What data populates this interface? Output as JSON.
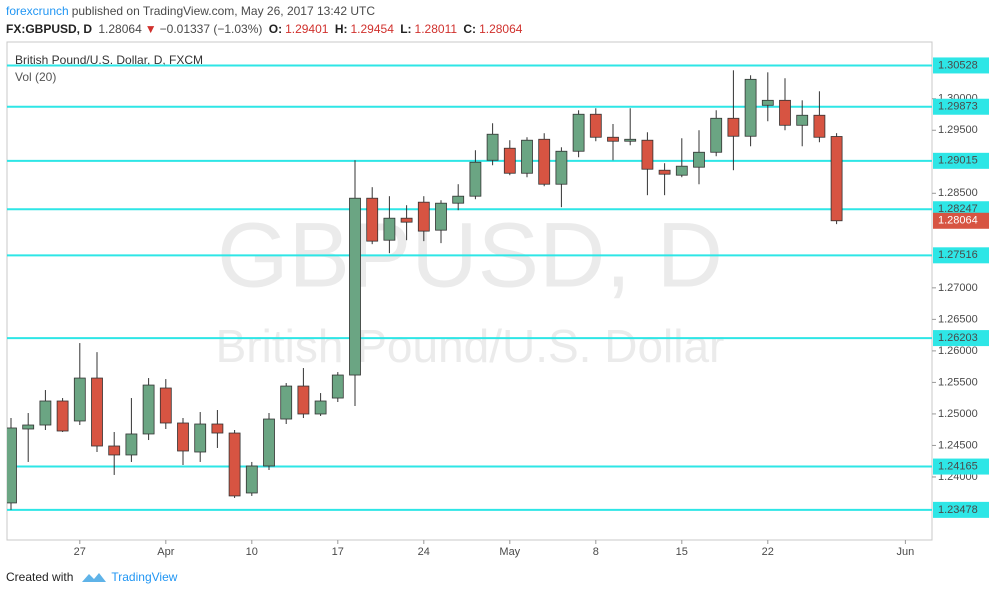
{
  "header": {
    "author": "forexcrunch",
    "published": "published on TradingView.com, May 26, 2017 13:42 UTC",
    "symbol": "FX:GBPUSD, D",
    "last": "1.28064",
    "change": "−0.01337 (−1.03%)",
    "o_label": "O:",
    "open": "1.29401",
    "h_label": "H:",
    "high": "1.29454",
    "l_label": "L:",
    "low": "1.28011",
    "c_label": "C:",
    "close": "1.28064"
  },
  "footer": {
    "created": "Created with",
    "brand": "TradingView"
  },
  "chart_data": {
    "type": "candlestick",
    "title": "British Pound/U.S. Dollar, D, FXCM",
    "indicator": "Vol (20)",
    "watermark": "GBPUSD, D",
    "watermark_sub": "British Pound/U.S. Dollar",
    "categories": [
      null,
      null,
      null,
      null,
      "27",
      null,
      null,
      null,
      null,
      "Apr",
      null,
      null,
      null,
      null,
      "10",
      null,
      null,
      null,
      null,
      "17",
      null,
      null,
      null,
      null,
      "24",
      null,
      null,
      null,
      null,
      "May",
      null,
      null,
      null,
      null,
      "8",
      null,
      null,
      null,
      null,
      "15",
      null,
      null,
      null,
      null,
      "22",
      null,
      null,
      null,
      null,
      null,
      null,
      null,
      "Jun",
      null
    ],
    "open": [
      1.23588,
      1.24761,
      1.24824,
      1.25205,
      1.24888,
      1.25569,
      1.24491,
      1.24349,
      1.24682,
      1.25411,
      1.24856,
      1.24396,
      1.2484,
      1.24697,
      1.23746,
      1.24174,
      1.24919,
      1.25442,
      1.24999,
      1.25252,
      1.25617,
      1.28422,
      1.27756,
      1.28105,
      1.28359,
      1.27915,
      1.28343,
      1.28454,
      1.29024,
      1.29215,
      1.28818,
      1.29357,
      1.28644,
      1.29167,
      1.29754,
      1.29389,
      1.29326,
      1.29342,
      1.28866,
      1.28787,
      1.28914,
      1.29151,
      1.2969,
      1.29405,
      1.29896,
      1.29975,
      1.29579,
      1.29738,
      1.29401,
      null,
      null,
      null,
      null,
      null
    ],
    "high": [
      1.24935,
      1.25014,
      1.25379,
      1.25252,
      1.26124,
      1.25981,
      1.24713,
      1.25252,
      1.25569,
      1.25553,
      1.24935,
      1.2503,
      1.25062,
      1.24745,
      1.24238,
      1.25014,
      1.2549,
      1.25728,
      1.25331,
      1.25664,
      1.29024,
      1.28597,
      1.28454,
      1.28311,
      1.28454,
      1.2839,
      1.28644,
      1.29183,
      1.29611,
      1.29342,
      1.29389,
      1.29453,
      1.2923,
      1.29817,
      1.29849,
      1.296,
      1.29849,
      1.29468,
      1.28977,
      1.29373,
      1.295,
      1.29817,
      1.30451,
      1.30372,
      1.30419,
      1.30324,
      1.29975,
      1.30118,
      1.29454,
      null,
      null,
      null,
      null,
      null
    ],
    "low": [
      1.23477,
      1.24238,
      1.24745,
      1.24713,
      1.24824,
      1.24396,
      1.24032,
      1.24238,
      1.24586,
      1.24761,
      1.2419,
      1.24238,
      1.2446,
      1.23667,
      1.23699,
      1.24111,
      1.2484,
      1.24935,
      1.24967,
      1.25189,
      1.25125,
      1.27693,
      1.2755,
      1.27756,
      1.27741,
      1.27709,
      1.28232,
      1.28406,
      1.28945,
      1.28787,
      1.28755,
      1.28612,
      1.2828,
      1.29072,
      1.29326,
      1.29024,
      1.29262,
      1.2847,
      1.2847,
      1.28755,
      1.28644,
      1.29088,
      1.28866,
      1.29246,
      1.29643,
      1.295,
      1.29246,
      1.2931,
      1.28011,
      null,
      null,
      null,
      null,
      null
    ],
    "close": [
      1.24777,
      1.24824,
      1.25205,
      1.24729,
      1.25569,
      1.24491,
      1.24349,
      1.24682,
      1.25458,
      1.24856,
      1.24412,
      1.2484,
      1.24697,
      1.23699,
      1.24174,
      1.24919,
      1.25442,
      1.24999,
      1.25205,
      1.25617,
      1.28422,
      1.27741,
      1.28105,
      1.28042,
      1.279,
      1.28343,
      1.28454,
      1.28993,
      1.29437,
      1.28818,
      1.29342,
      1.28644,
      1.29167,
      1.29754,
      1.29389,
      1.29326,
      1.29357,
      1.28882,
      1.28803,
      1.2893,
      1.29151,
      1.2969,
      1.29405,
      1.30308,
      1.29975,
      1.29579,
      1.29738,
      1.29389,
      1.28064,
      null,
      null,
      null,
      null,
      null
    ],
    "up_color": "#6ba583",
    "down_color": "#d75442",
    "ylim": [
      1.23,
      1.309
    ],
    "yticks": [
      {
        "value": 1.24,
        "label": "1.24000"
      },
      {
        "value": 1.245,
        "label": "1.24500"
      },
      {
        "value": 1.25,
        "label": "1.25000"
      },
      {
        "value": 1.255,
        "label": "1.25500"
      },
      {
        "value": 1.26,
        "label": "1.26000"
      },
      {
        "value": 1.265,
        "label": "1.26500"
      },
      {
        "value": 1.27,
        "label": "1.27000"
      },
      {
        "value": 1.285,
        "label": "1.28500"
      },
      {
        "value": 1.295,
        "label": "1.29500"
      },
      {
        "value": 1.3,
        "label": "1.30000"
      }
    ],
    "levels": [
      1.30528,
      1.29873,
      1.29015,
      1.28247,
      1.27516,
      1.26203,
      1.24165,
      1.23478
    ],
    "level_color": "#2ee6e6",
    "last_color": "#d75442",
    "grid": false
  }
}
